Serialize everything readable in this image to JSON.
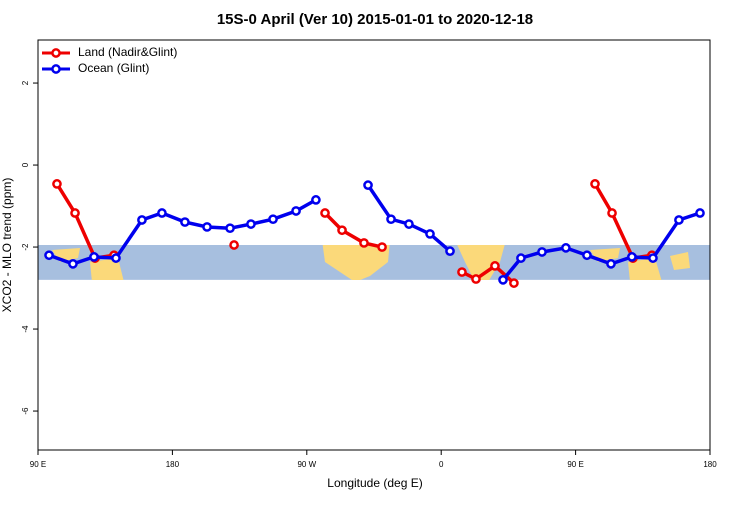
{
  "chart_data": {
    "type": "line",
    "title": "15S-0 April (Ver 10)   2015-01-01 to 2020-12-18",
    "xlabel": "Longitude (deg E)",
    "ylabel": "XCO2 - MLO trend (ppm)",
    "xlim": [
      90,
      540
    ],
    "xticks": [
      {
        "value": 90,
        "label": "90 E"
      },
      {
        "value": 180,
        "label": "180"
      },
      {
        "value": 270,
        "label": "90 W"
      },
      {
        "value": 360,
        "label": "0"
      },
      {
        "value": 450,
        "label": "90 E"
      },
      {
        "value": 540,
        "label": "180"
      }
    ],
    "ylim": [
      -6.95,
      3.05
    ],
    "yticks": [
      2,
      0,
      -2,
      -4,
      -6
    ],
    "band": [
      -2.8,
      -1.95
    ],
    "legend": "topleft",
    "series": [
      {
        "name": "Land (Nadir&Glint)",
        "color": "#ee0000",
        "x": [
          102.7,
          114.8,
          128.2,
          140.9,
          null,
          221.3,
          null,
          282.2,
          293.6,
          308.3,
          320.4,
          null,
          373.9,
          383.3,
          396.0,
          408.7,
          null,
          463.0,
          474.4,
          488.4,
          501.1
        ],
        "values": [
          -0.46,
          -1.17,
          -2.27,
          -2.2,
          null,
          -1.95,
          null,
          -1.17,
          -1.59,
          -1.9,
          -2.0,
          null,
          -2.61,
          -2.78,
          -2.46,
          -2.88,
          null,
          -0.46,
          -1.17,
          -2.27,
          -2.2
        ]
      },
      {
        "name": "Ocean (Glint)",
        "color": "#0000ee",
        "x": [
          97.4,
          113.4,
          127.5,
          142.2,
          159.6,
          173.0,
          188.4,
          203.2,
          218.6,
          232.6,
          247.4,
          262.8,
          276.1,
          null,
          311.0,
          326.4,
          338.4,
          352.5,
          365.9,
          null,
          401.4,
          413.4,
          427.5,
          443.5,
          457.6,
          473.7,
          487.7,
          501.8,
          519.2,
          533.3
        ],
        "values": [
          -2.2,
          -2.41,
          -2.24,
          -2.27,
          -1.34,
          -1.17,
          -1.39,
          -1.51,
          -1.54,
          -1.44,
          -1.32,
          -1.12,
          -0.85,
          null,
          -0.49,
          -1.32,
          -1.44,
          -1.68,
          -2.1,
          null,
          -2.8,
          -2.27,
          -2.12,
          -2.02,
          -2.2,
          -2.41,
          -2.24,
          -2.27,
          -1.34,
          -1.17
        ]
      }
    ]
  }
}
